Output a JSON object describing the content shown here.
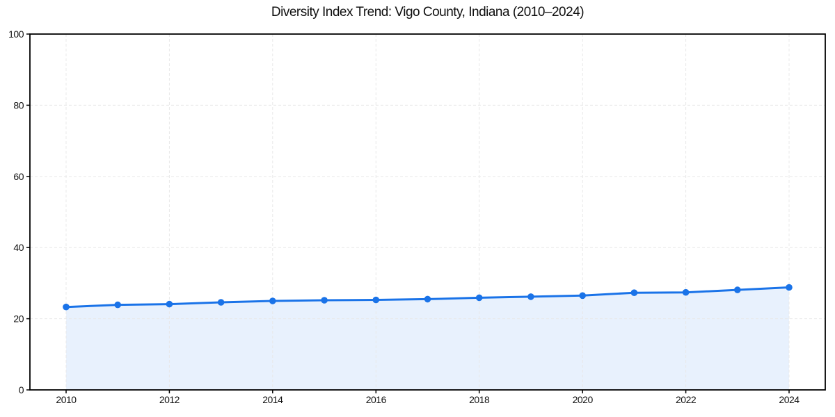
{
  "chart_data": {
    "type": "line",
    "title": "Diversity Index Trend: Vigo County, Indiana (2010–2024)",
    "x": [
      2010,
      2011,
      2012,
      2013,
      2014,
      2015,
      2016,
      2017,
      2018,
      2019,
      2020,
      2021,
      2022,
      2023,
      2024
    ],
    "series": [
      {
        "name": "Diversity Index",
        "values": [
          23.3,
          23.9,
          24.1,
          24.6,
          25.0,
          25.2,
          25.3,
          25.5,
          25.9,
          26.2,
          26.5,
          27.3,
          27.4,
          28.1,
          28.8
        ]
      }
    ],
    "xlabel": "",
    "ylabel": "",
    "xlim": [
      2009.3,
      2024.7
    ],
    "ylim": [
      0,
      100
    ],
    "xticks": [
      2010,
      2012,
      2014,
      2016,
      2018,
      2020,
      2022,
      2024
    ],
    "yticks": [
      0,
      20,
      40,
      60,
      80,
      100
    ],
    "grid": true,
    "grid_style": "dashed",
    "legend": "none",
    "marker": "circle",
    "area_fill": true,
    "colors": {
      "line": "#1a73e8",
      "marker": "#1a73e8",
      "fill": "rgba(26,115,232,0.10)",
      "grid": "#e8e8e8",
      "spine": "#000000",
      "text": "#111111",
      "background": "#ffffff"
    }
  }
}
